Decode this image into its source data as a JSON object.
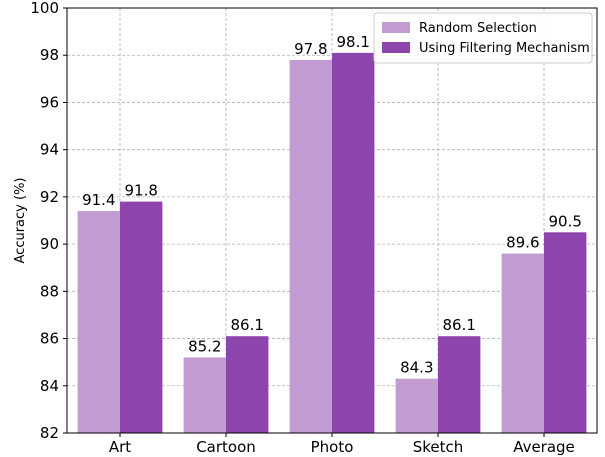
{
  "chart_data": {
    "type": "bar",
    "categories": [
      "Art",
      "Cartoon",
      "Photo",
      "Sketch",
      "Average"
    ],
    "series": [
      {
        "name": "Random Selection",
        "values": [
          91.4,
          85.2,
          97.8,
          84.3,
          89.6
        ],
        "color": "#c39bd3"
      },
      {
        "name": "Using Filtering Mechanism",
        "values": [
          91.8,
          86.1,
          98.1,
          86.1,
          90.5
        ],
        "color": "#8e44ad"
      }
    ],
    "title": "",
    "xlabel": "",
    "ylabel": "Accuracy (%)",
    "ylim": [
      82,
      100
    ],
    "yticks": [
      82,
      84,
      86,
      88,
      90,
      92,
      94,
      96,
      98,
      100
    ],
    "grid": true,
    "legend_position": "top-right"
  }
}
